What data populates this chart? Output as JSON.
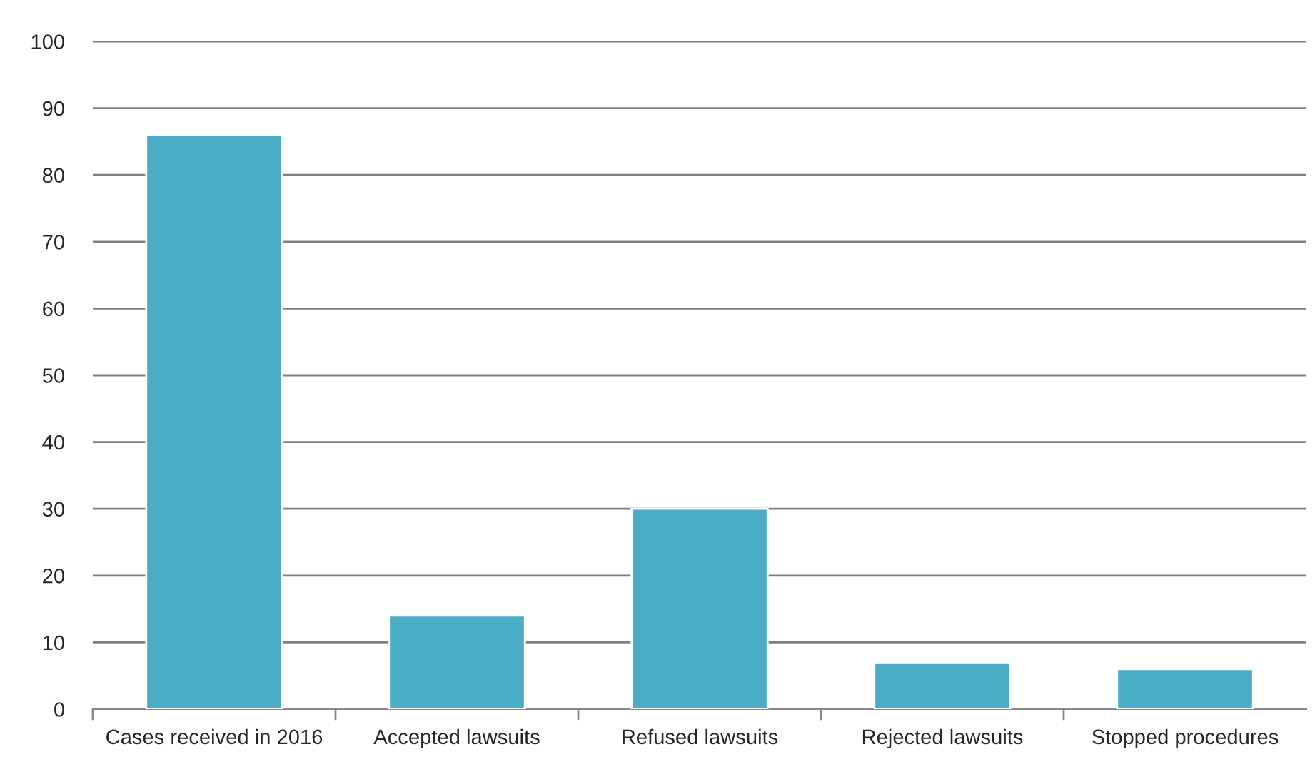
{
  "chart_data": {
    "type": "bar",
    "categories": [
      "Cases received in 2016",
      "Accepted lawsuits",
      "Refused lawsuits",
      "Rejected lawsuits",
      "Stopped procedures"
    ],
    "values": [
      86,
      14,
      30,
      7,
      6
    ],
    "color": "#4bacc6",
    "ylim": [
      0,
      100
    ],
    "yticks": [
      0,
      10,
      20,
      30,
      40,
      50,
      60,
      70,
      80,
      90,
      100
    ],
    "grid": "y"
  }
}
